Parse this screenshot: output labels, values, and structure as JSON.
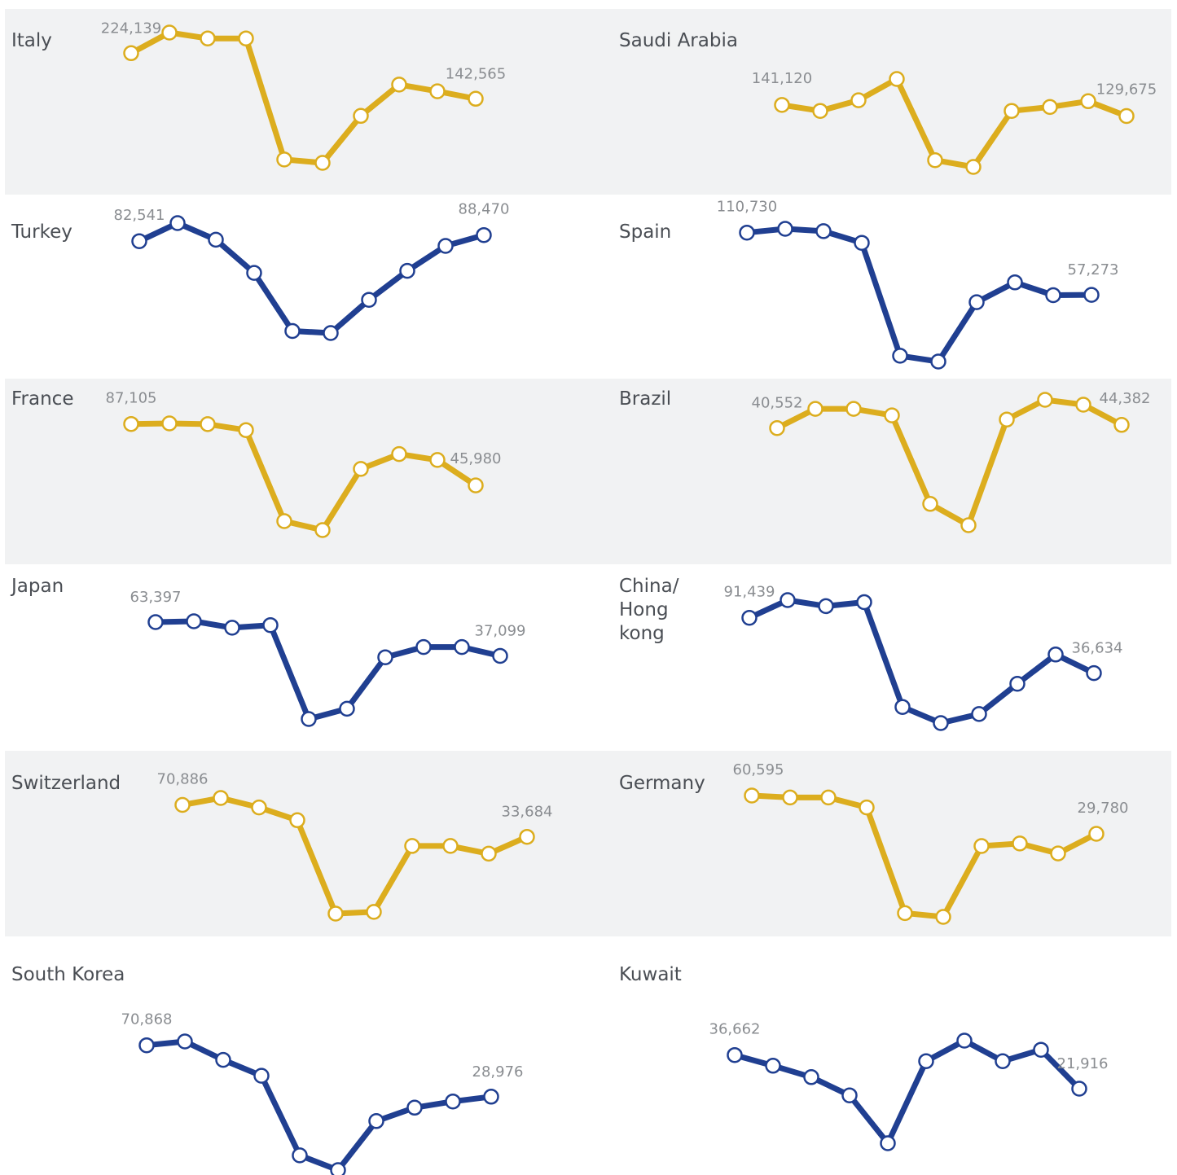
{
  "colors": {
    "gold": "#dcad1e",
    "blue": "#203f91",
    "panel": "#f1f2f3"
  },
  "chart_data": [
    {
      "type": "line",
      "title": "Italy",
      "color": "gold",
      "values": [
        224139,
        261000,
        250500,
        250500,
        34000,
        28000,
        112000,
        168000,
        156000,
        142565
      ],
      "first_label": "224,139",
      "last_label": "142,565"
    },
    {
      "type": "line",
      "title": "Saudi Arabia",
      "color": "gold",
      "values": [
        141120,
        135000,
        146000,
        168000,
        84000,
        77000,
        135000,
        139000,
        145000,
        129675
      ],
      "first_label": "141,120",
      "last_label": "129,675"
    },
    {
      "type": "line",
      "title": "Turkey",
      "color": "blue",
      "values": [
        82541,
        100000,
        84000,
        52000,
        -4000,
        -6000,
        26000,
        54000,
        78000,
        88470
      ],
      "first_label": "82,541",
      "last_label": "88,470"
    },
    {
      "type": "line",
      "title": "Spain",
      "color": "blue",
      "values": [
        110730,
        114000,
        112000,
        102000,
        5000,
        0,
        51000,
        68000,
        57000,
        57273
      ],
      "first_label": "110,730",
      "last_label": "57,273"
    },
    {
      "type": "line",
      "title": "France",
      "color": "gold",
      "values": [
        87105,
        87500,
        87000,
        83000,
        22000,
        16000,
        57000,
        67000,
        63000,
        45980
      ],
      "first_label": "87,105",
      "last_label": "45,980"
    },
    {
      "type": "line",
      "title": "Brazil",
      "color": "gold",
      "values": [
        40552,
        64000,
        64000,
        56000,
        -52000,
        -78000,
        51000,
        75000,
        69000,
        44382
      ],
      "first_label": "40,552",
      "last_label": "44,382"
    },
    {
      "type": "line",
      "title": "Japan",
      "color": "blue",
      "values": [
        63397,
        64000,
        59000,
        61000,
        -12000,
        -4000,
        36000,
        44000,
        44000,
        37099
      ],
      "first_label": "63,397",
      "last_label": "37,099"
    },
    {
      "type": "line",
      "title": "China/\nHong\nkong",
      "color": "blue",
      "values": [
        91439,
        109000,
        103000,
        107000,
        3000,
        -13000,
        -4000,
        26000,
        55000,
        36634
      ],
      "first_label": "91,439",
      "last_label": "36,634"
    },
    {
      "type": "line",
      "title": "Switzerland",
      "color": "gold",
      "values": [
        70886,
        79000,
        68000,
        53000,
        -56000,
        -54000,
        23000,
        23000,
        14000,
        33684
      ],
      "first_label": "70,886",
      "last_label": "33,684"
    },
    {
      "type": "line",
      "title": "Germany",
      "color": "gold",
      "values": [
        60595,
        59000,
        59000,
        51000,
        -34000,
        -37000,
        20000,
        22000,
        14000,
        29780
      ],
      "first_label": "60,595",
      "last_label": "29,780"
    },
    {
      "type": "line",
      "title": "South Korea",
      "color": "blue",
      "values": [
        70868,
        74000,
        59000,
        46000,
        -19000,
        -31000,
        9000,
        20000,
        25000,
        28976
      ],
      "first_label": "70,868",
      "last_label": "28,976"
    },
    {
      "type": "line",
      "title": "Kuwait",
      "color": "blue",
      "values": [
        36662,
        32000,
        27000,
        19000,
        -2000,
        34000,
        43000,
        34000,
        39000,
        21916
      ],
      "first_label": "36,662",
      "last_label": "21,916"
    }
  ]
}
